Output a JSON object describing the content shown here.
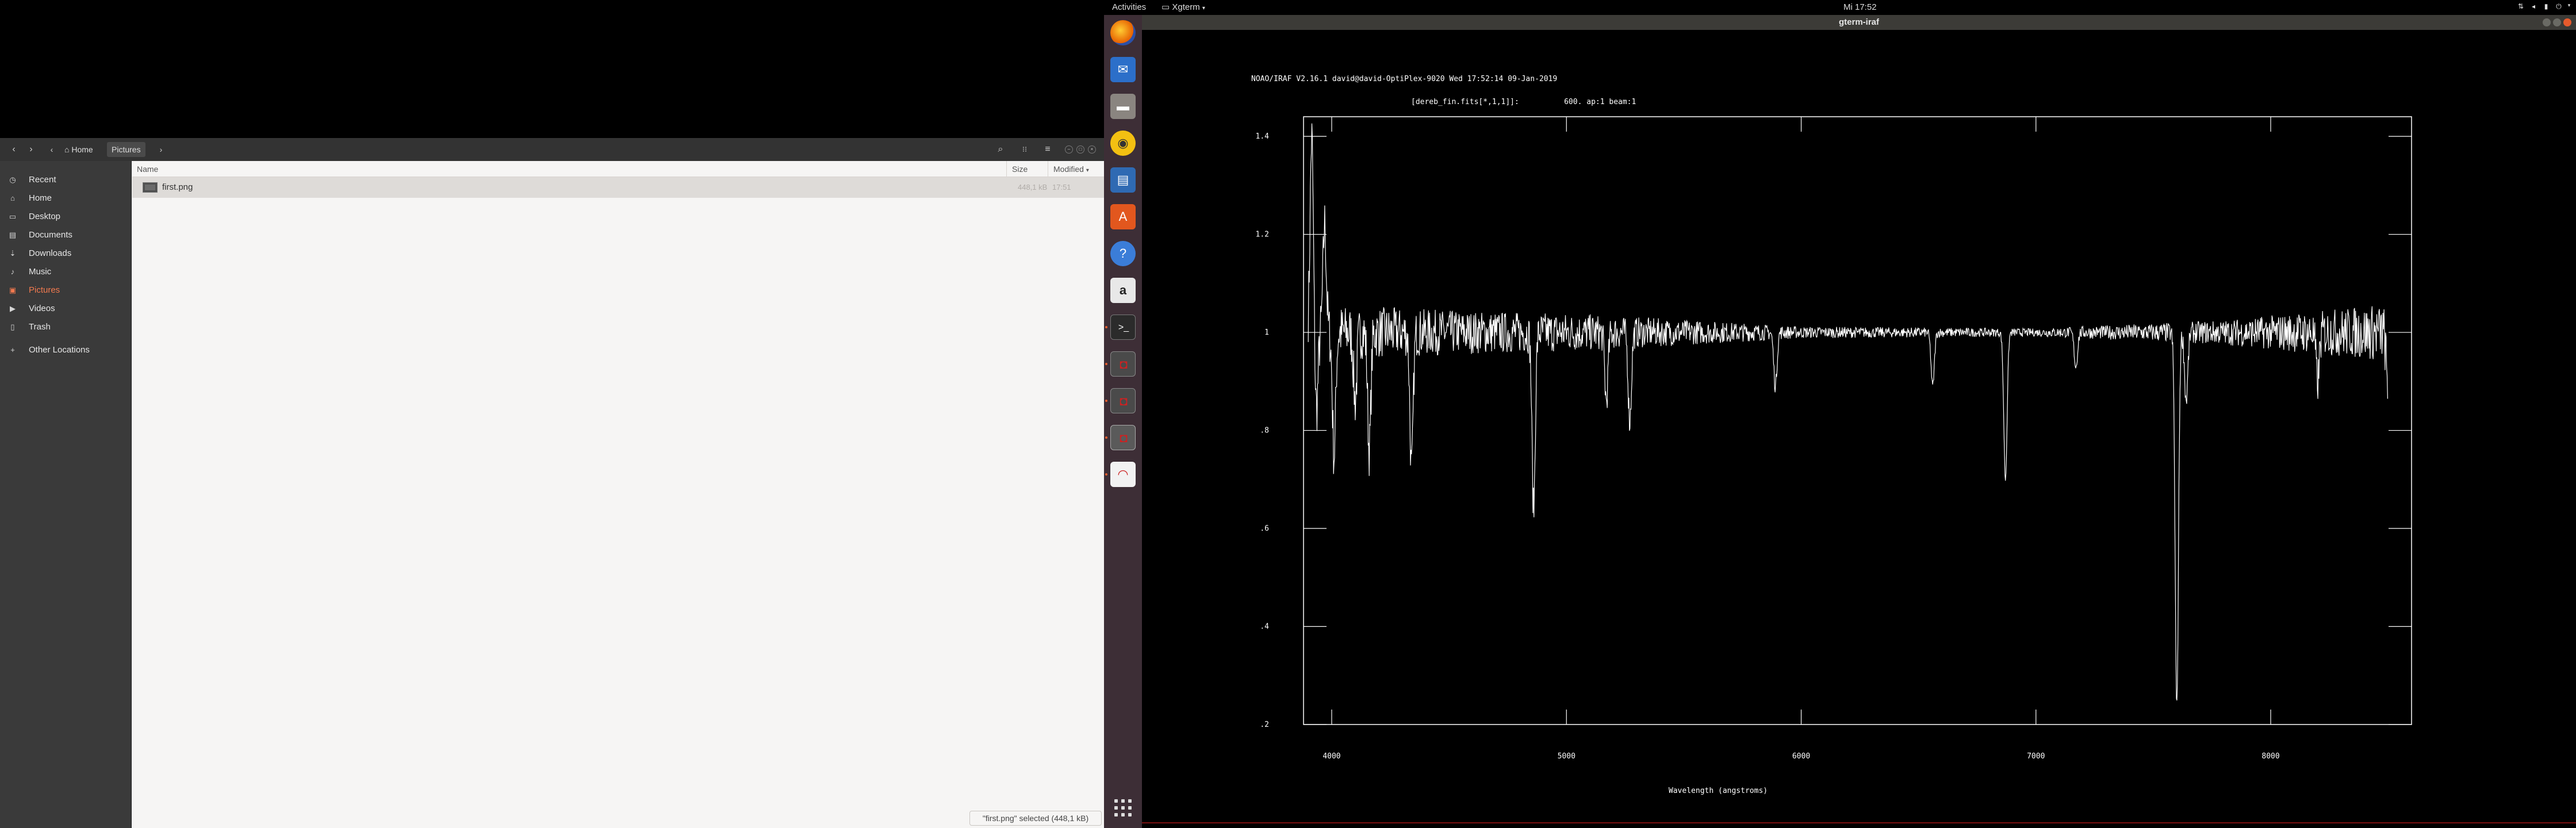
{
  "topbar": {
    "activities": "Activities",
    "app_menu": "Xgterm",
    "clock": "Mi 17:52"
  },
  "nautilus": {
    "breadcrumbs": [
      "Home",
      "Pictures"
    ],
    "sidebar": [
      {
        "label": "Recent",
        "icon": "clock-icon"
      },
      {
        "label": "Home",
        "icon": "home-icon"
      },
      {
        "label": "Desktop",
        "icon": "desktop-icon"
      },
      {
        "label": "Documents",
        "icon": "document-icon"
      },
      {
        "label": "Downloads",
        "icon": "download-icon"
      },
      {
        "label": "Music",
        "icon": "music-icon"
      },
      {
        "label": "Pictures",
        "icon": "picture-icon",
        "active": true
      },
      {
        "label": "Videos",
        "icon": "video-icon"
      },
      {
        "label": "Trash",
        "icon": "trash-icon"
      },
      {
        "label": "Other Locations",
        "icon": "plus-icon"
      }
    ],
    "columns": {
      "name": "Name",
      "size": "Size",
      "modified": "Modified"
    },
    "files": [
      {
        "name": "first.png",
        "size": "448,1 kB",
        "modified": "17:51"
      }
    ],
    "status": "\"first.png\" selected (448,1 kB)"
  },
  "dock": [
    "firefox-icon",
    "thunderbird-icon",
    "files-icon",
    "rhythmbox-icon",
    "libreoffice-writer-icon",
    "software-center-icon",
    "help-icon",
    "amazon-icon",
    "terminal-icon",
    "iraf-window-icon",
    "iraf-window-icon",
    "iraf-window-icon",
    "ds9-icon",
    "show-apps-icon"
  ],
  "iraf": {
    "window_title": "gterm-iraf",
    "header": "NOAO/IRAF V2.16.1 david@david-OptiPlex-9020 Wed 17:52:14 09-Jan-2019",
    "subheader": "[dereb_fin.fits[*,1,1]]:          600. ap:1 beam:1",
    "accent_color": "#e85e2f"
  },
  "chart_data": {
    "type": "line",
    "title": "NOAO/IRAF V2.16.1 david@david-OptiPlex-9020 Wed 17:52:14 09-Jan-2019",
    "subtitle": "[dereb_fin.fits[*,1,1]]:          600. ap:1 beam:1",
    "xlabel": "Wavelength (angstroms)",
    "ylabel": "",
    "xlim": [
      3880,
      8600
    ],
    "ylim": [
      0.2,
      1.44
    ],
    "xticks": [
      4000,
      5000,
      6000,
      7000,
      8000
    ],
    "xtick_labels": [
      "4000",
      "5000",
      "6000",
      "7000",
      "8000"
    ],
    "yticks": [
      0.2,
      0.4,
      0.6,
      0.8,
      1.0,
      1.2,
      1.4
    ],
    "ytick_labels": [
      ".2",
      ".4",
      ".6",
      ".8",
      "1",
      "1.2",
      "1.4"
    ],
    "grid": false,
    "continuum": 1.0,
    "x_range": [
      3900,
      8500
    ],
    "features": [
      {
        "x": 3915,
        "y": 1.4
      },
      {
        "x": 3935,
        "y": 0.84
      },
      {
        "x": 3970,
        "y": 1.22
      },
      {
        "x": 4010,
        "y": 0.75
      },
      {
        "x": 4100,
        "y": 0.86
      },
      {
        "x": 4160,
        "y": 0.76
      },
      {
        "x": 4340,
        "y": 0.72
      },
      {
        "x": 4860,
        "y": 0.64
      },
      {
        "x": 5170,
        "y": 0.86
      },
      {
        "x": 5270,
        "y": 0.82
      },
      {
        "x": 5890,
        "y": 0.89
      },
      {
        "x": 6560,
        "y": 0.89
      },
      {
        "x": 6870,
        "y": 0.7
      },
      {
        "x": 7170,
        "y": 0.93
      },
      {
        "x": 7600,
        "y": 0.23
      },
      {
        "x": 7640,
        "y": 0.86
      },
      {
        "x": 8200,
        "y": 0.9
      },
      {
        "x": 8500,
        "y": 0.87
      }
    ],
    "noise": [
      {
        "x": 3900,
        "amplitude": 0.06
      },
      {
        "x": 4500,
        "amplitude": 0.045
      },
      {
        "x": 5000,
        "amplitude": 0.04
      },
      {
        "x": 6000,
        "amplitude": 0.012
      },
      {
        "x": 7000,
        "amplitude": 0.008
      },
      {
        "x": 7800,
        "amplitude": 0.025
      },
      {
        "x": 8500,
        "amplitude": 0.06
      }
    ]
  }
}
